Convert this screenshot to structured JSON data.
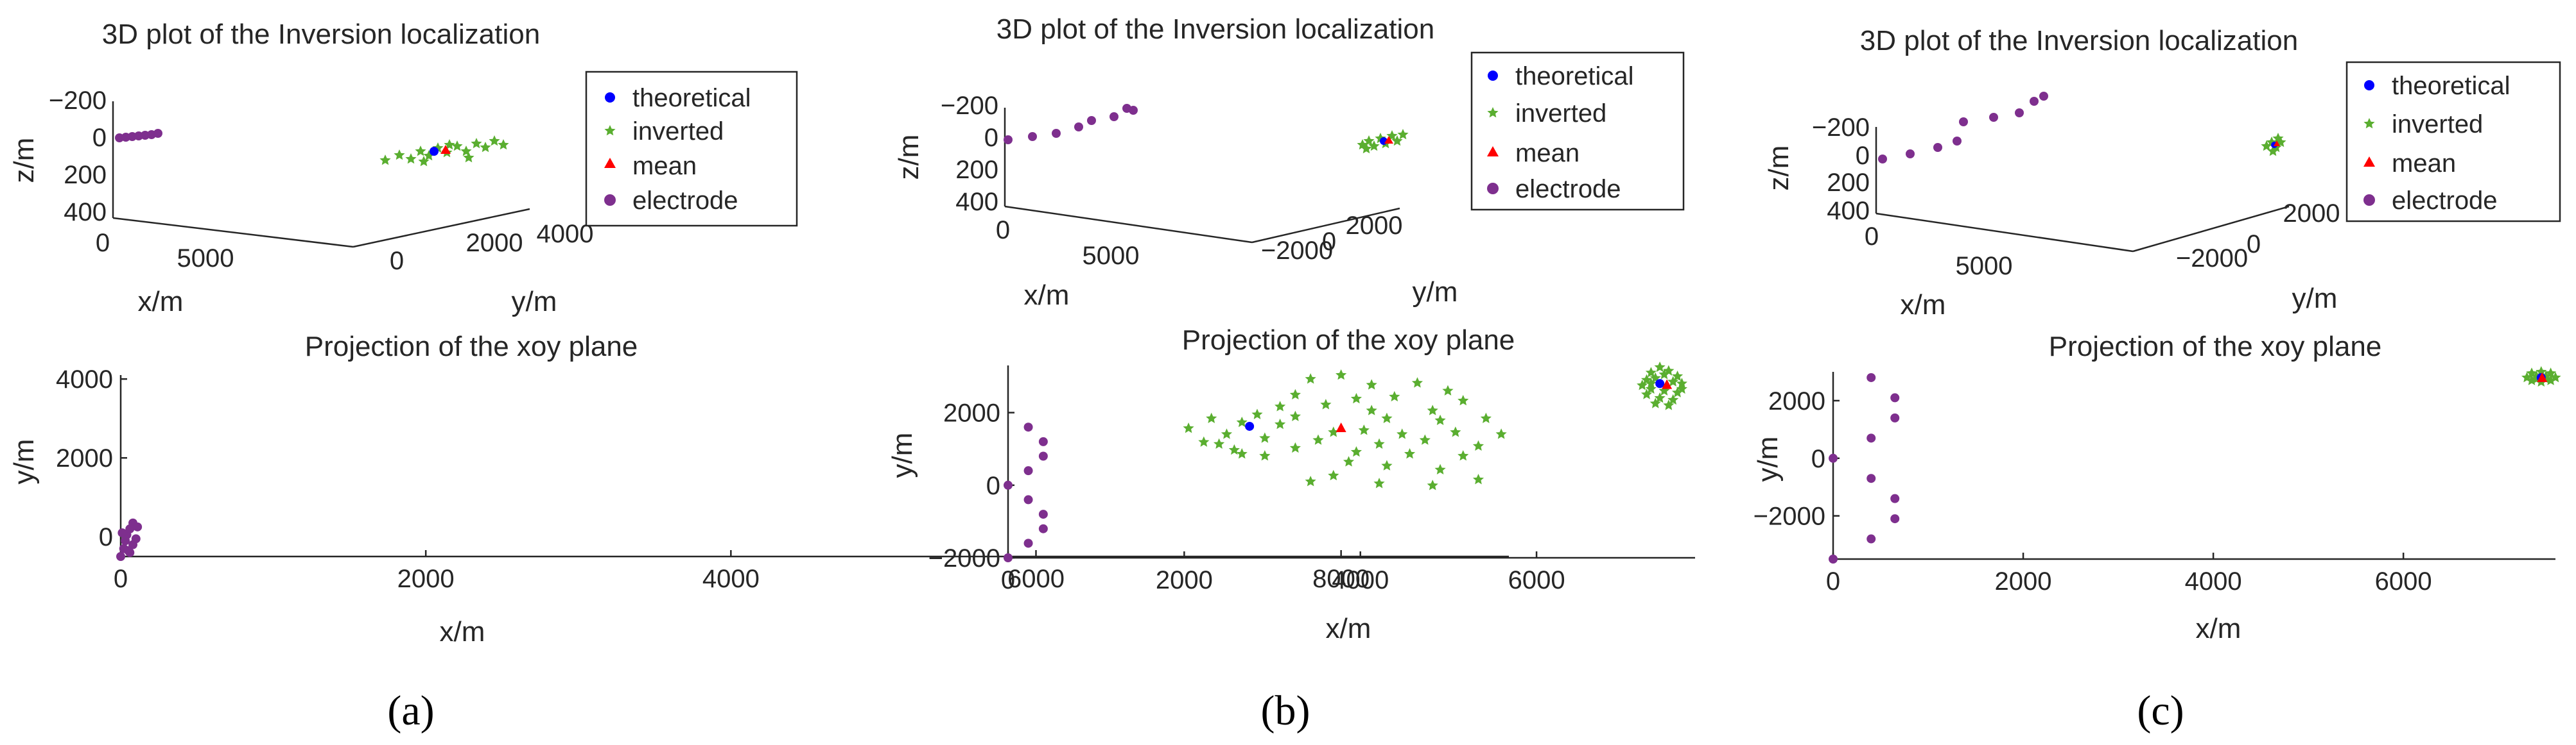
{
  "chart_data": [
    {
      "panel": "(a)",
      "type": "scatter",
      "plots": [
        {
          "kind": "3d",
          "title": "3D plot of the Inversion localization",
          "xlabel": "x/m",
          "ylabel": "y/m",
          "zlabel": "z/m",
          "xticks": [
            "0",
            "5000"
          ],
          "yticks": [
            "0",
            "2000",
            "4000"
          ],
          "zticks": [
            "−200",
            "0",
            "200",
            "400"
          ],
          "legend": {
            "position": "top-right",
            "entries": [
              "theoretical",
              "inverted",
              "mean",
              "electrode"
            ]
          }
        },
        {
          "kind": "2d",
          "title": "Projection of the xoy plane",
          "xlabel": "x/m",
          "ylabel": "y/m",
          "xlim": [
            0,
            9100
          ],
          "ylim": [
            -500,
            4100
          ],
          "xticks": [
            0,
            2000,
            4000,
            6000,
            8000
          ],
          "yticks": [
            0,
            2000,
            4000
          ],
          "series": [
            {
              "name": "theoretical",
              "marker": "circle",
              "color": "#0000ff",
              "points": [
                [
                  7400,
                  2800
                ]
              ]
            },
            {
              "name": "mean",
              "marker": "triangle",
              "color": "#ff0000",
              "points": [
                [
                  8000,
                  2750
                ]
              ]
            },
            {
              "name": "inverted",
              "marker": "star",
              "color": "#5aae30",
              "points": [
                [
                  7800,
                  4000
                ],
                [
                  8000,
                  4100
                ],
                [
                  8200,
                  3850
                ],
                [
                  8500,
                  3900
                ],
                [
                  8700,
                  3700
                ],
                [
                  7700,
                  3600
                ],
                [
                  8100,
                  3500
                ],
                [
                  8350,
                  3550
                ],
                [
                  8800,
                  3450
                ],
                [
                  7600,
                  3300
                ],
                [
                  7900,
                  3350
                ],
                [
                  8200,
                  3200
                ],
                [
                  8600,
                  3200
                ],
                [
                  7450,
                  3100
                ],
                [
                  7700,
                  3050
                ],
                [
                  8300,
                  3000
                ],
                [
                  8650,
                  2950
                ],
                [
                  8950,
                  3000
                ],
                [
                  7150,
                  3000
                ],
                [
                  7350,
                  2900
                ],
                [
                  7600,
                  2850
                ],
                [
                  7950,
                  2650
                ],
                [
                  8150,
                  2700
                ],
                [
                  8400,
                  2600
                ],
                [
                  8750,
                  2650
                ],
                [
                  7000,
                  2750
                ],
                [
                  7250,
                  2600
                ],
                [
                  7500,
                  2500
                ],
                [
                  7850,
                  2450
                ],
                [
                  8250,
                  2350
                ],
                [
                  8550,
                  2450
                ],
                [
                  8900,
                  2300
                ],
                [
                  9050,
                  2600
                ],
                [
                  7100,
                  2400
                ],
                [
                  7300,
                  2200
                ],
                [
                  7700,
                  2250
                ],
                [
                  8100,
                  2150
                ],
                [
                  8450,
                  2100
                ],
                [
                  8800,
                  2050
                ],
                [
                  8050,
                  1900
                ],
                [
                  8300,
                  1800
                ],
                [
                  8650,
                  1700
                ],
                [
                  7500,
                  2050
                ],
                [
                  7800,
                  1400
                ],
                [
                  7950,
                  1550
                ],
                [
                  8250,
                  1350
                ],
                [
                  8600,
                  1300
                ],
                [
                  8900,
                  1450
                ],
                [
                  7200,
                  2350
                ],
                [
                  7350,
                  2100
                ]
              ]
            },
            {
              "name": "electrode",
              "marker": "circle",
              "color": "#7e2f8e",
              "points": [
                [
                  0,
                  -500
                ],
                [
                  20,
                  -300
                ],
                [
                  30,
                  -100
                ],
                [
                  40,
                  50
                ],
                [
                  60,
                  200
                ],
                [
                  80,
                  350
                ],
                [
                  60,
                  -400
                ],
                [
                  80,
                  -200
                ],
                [
                  100,
                  -50
                ],
                [
                  110,
                  250
                ],
                [
                  10,
                  100
                ],
                [
                  50,
                  -350
                ]
              ]
            }
          ]
        }
      ]
    },
    {
      "panel": "(b)",
      "type": "scatter",
      "plots": [
        {
          "kind": "3d",
          "title": "3D plot of the Inversion localization",
          "xlabel": "x/m",
          "ylabel": "y/m",
          "zlabel": "z/m",
          "xticks": [
            "0",
            "5000"
          ],
          "yticks": [
            "−2000",
            "0",
            "2000"
          ],
          "zticks": [
            "−200",
            "0",
            "200",
            "400"
          ],
          "legend": {
            "position": "top-right",
            "entries": [
              "theoretical",
              "inverted",
              "mean",
              "electrode"
            ]
          }
        },
        {
          "kind": "2d",
          "title": "Projection of the xoy plane",
          "xlabel": "x/m",
          "ylabel": "y/m",
          "xlim": [
            0,
            7800
          ],
          "ylim": [
            -2000,
            3300
          ],
          "xticks": [
            0,
            2000,
            4000,
            6000
          ],
          "yticks": [
            -2000,
            0,
            2000
          ],
          "series": [
            {
              "name": "theoretical",
              "marker": "circle",
              "color": "#0000ff",
              "points": [
                [
                  7400,
                  2800
                ]
              ]
            },
            {
              "name": "mean",
              "marker": "triangle",
              "color": "#ff0000",
              "points": [
                [
                  7480,
                  2760
                ]
              ]
            },
            {
              "name": "inverted",
              "marker": "star",
              "color": "#5aae30",
              "points": [
                [
                  7300,
                  3100
                ],
                [
                  7400,
                  3250
                ],
                [
                  7500,
                  3150
                ],
                [
                  7600,
                  3000
                ],
                [
                  7250,
                  2900
                ],
                [
                  7350,
                  2950
                ],
                [
                  7550,
                  2850
                ],
                [
                  7650,
                  2800
                ],
                [
                  7200,
                  2750
                ],
                [
                  7300,
                  2650
                ],
                [
                  7450,
                  2600
                ],
                [
                  7600,
                  2550
                ],
                [
                  7250,
                  2500
                ],
                [
                  7400,
                  2400
                ],
                [
                  7550,
                  2350
                ],
                [
                  7350,
                  2250
                ],
                [
                  7500,
                  2200
                ],
                [
                  7650,
                  2650
                ],
                [
                  7450,
                  3050
                ],
                [
                  7300,
                  2800
                ]
              ]
            },
            {
              "name": "electrode",
              "marker": "circle",
              "color": "#7e2f8e",
              "points": [
                [
                  0,
                  0
                ],
                [
                  0,
                  -2000
                ],
                [
                  230,
                  1600
                ],
                [
                  230,
                  400
                ],
                [
                  230,
                  -400
                ],
                [
                  230,
                  -1600
                ],
                [
                  400,
                  1200
                ],
                [
                  400,
                  800
                ],
                [
                  400,
                  -800
                ],
                [
                  400,
                  -1200
                ]
              ]
            }
          ]
        }
      ]
    },
    {
      "panel": "(c)",
      "type": "scatter",
      "plots": [
        {
          "kind": "3d",
          "title": "3D plot of the Inversion localization",
          "xlabel": "x/m",
          "ylabel": "y/m",
          "zlabel": "z/m",
          "xticks": [
            "0",
            "5000"
          ],
          "yticks": [
            "−2000",
            "0",
            "2000"
          ],
          "zticks": [
            "−200",
            "0",
            "200",
            "400"
          ],
          "legend": {
            "position": "top-right",
            "entries": [
              "theoretical",
              "inverted",
              "mean",
              "electrode"
            ]
          }
        },
        {
          "kind": "2d",
          "title": "Projection of the xoy plane",
          "xlabel": "x/m",
          "ylabel": "y/m",
          "xlim": [
            0,
            7600
          ],
          "ylim": [
            -3500,
            3000
          ],
          "xticks": [
            0,
            2000,
            4000,
            6000
          ],
          "yticks": [
            -2000,
            0,
            2000
          ],
          "series": [
            {
              "name": "theoretical",
              "marker": "circle",
              "color": "#0000ff",
              "points": [
                [
                  7450,
                  2800
                ]
              ]
            },
            {
              "name": "mean",
              "marker": "triangle",
              "color": "#ff0000",
              "points": [
                [
                  7460,
                  2780
                ]
              ]
            },
            {
              "name": "inverted",
              "marker": "star",
              "color": "#5aae30",
              "points": [
                [
                  7350,
                  2950
                ],
                [
                  7450,
                  3000
                ],
                [
                  7550,
                  2950
                ],
                [
                  7300,
                  2800
                ],
                [
                  7400,
                  2850
                ],
                [
                  7500,
                  2850
                ],
                [
                  7600,
                  2800
                ],
                [
                  7350,
                  2700
                ],
                [
                  7450,
                  2650
                ],
                [
                  7550,
                  2700
                ],
                [
                  7400,
                  2750
                ],
                [
                  7500,
                  2750
                ]
              ]
            },
            {
              "name": "electrode",
              "marker": "circle",
              "color": "#7e2f8e",
              "points": [
                [
                  0,
                  0
                ],
                [
                  0,
                  -3500
                ],
                [
                  400,
                  2800
                ],
                [
                  400,
                  700
                ],
                [
                  400,
                  -700
                ],
                [
                  400,
                  -2800
                ],
                [
                  650,
                  2100
                ],
                [
                  650,
                  1400
                ],
                [
                  650,
                  -1400
                ],
                [
                  650,
                  -2100
                ]
              ]
            }
          ]
        }
      ]
    }
  ]
}
